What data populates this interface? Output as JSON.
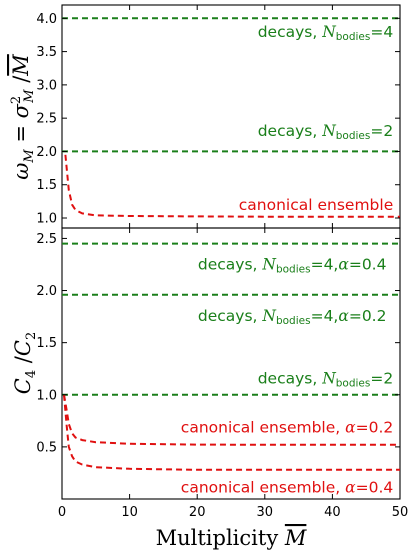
{
  "chart_data": [
    {
      "type": "line",
      "panel": "top",
      "ylabel": "ω_M = σ²_M / M̄",
      "xlim": [
        0,
        50
      ],
      "ylim": [
        0.85,
        4.2
      ],
      "yticks": [
        1.0,
        1.5,
        2.0,
        2.5,
        3.0,
        3.5,
        4.0
      ],
      "ytick_labels": [
        "1.0",
        "1.5",
        "2.0",
        "2.5",
        "3.0",
        "3.5",
        "4.0"
      ],
      "series": [
        {
          "color": "#1a7f1a",
          "style": "dashed",
          "x": [
            0,
            50
          ],
          "y": [
            4.0,
            4.0
          ]
        },
        {
          "color": "#1a7f1a",
          "style": "dashed",
          "x": [
            0,
            50
          ],
          "y": [
            2.0,
            2.0
          ]
        },
        {
          "color": "#e01010",
          "style": "dashed",
          "x": [
            0.5,
            1,
            1.5,
            2,
            3,
            5,
            10,
            20,
            30,
            40,
            50
          ],
          "y": [
            1.95,
            1.42,
            1.2,
            1.12,
            1.07,
            1.04,
            1.03,
            1.025,
            1.02,
            1.02,
            1.02
          ]
        }
      ],
      "annotations": [
        {
          "text": "decays, ",
          "var": "N",
          "sub": "bodies",
          "suffix": "=4",
          "color": "green",
          "x": 49,
          "y": 3.72
        },
        {
          "text": "decays, ",
          "var": "N",
          "sub": "bodies",
          "suffix": "=2",
          "color": "green",
          "x": 49,
          "y": 2.23
        },
        {
          "text": "canonical ensemble",
          "color": "red",
          "x": 49,
          "y": 1.12
        }
      ]
    },
    {
      "type": "line",
      "panel": "bottom",
      "xlabel": "Multiplicity M̄",
      "ylabel": "C₄ / C₂",
      "xlim": [
        0,
        50
      ],
      "ylim": [
        0,
        2.6
      ],
      "xticks": [
        0,
        10,
        20,
        30,
        40,
        50
      ],
      "xtick_labels": [
        "0",
        "10",
        "20",
        "30",
        "40",
        "50"
      ],
      "yticks": [
        0.5,
        1.0,
        1.5,
        2.0,
        2.5
      ],
      "ytick_labels": [
        "0.5",
        "1.0",
        "1.5",
        "2.0",
        "2.5"
      ],
      "series": [
        {
          "color": "#1a7f1a",
          "style": "dashed",
          "x": [
            0,
            50
          ],
          "y": [
            2.45,
            2.45
          ]
        },
        {
          "color": "#1a7f1a",
          "style": "dashed",
          "x": [
            0,
            50
          ],
          "y": [
            1.96,
            1.96
          ]
        },
        {
          "color": "#1a7f1a",
          "style": "dashed",
          "x": [
            0,
            50
          ],
          "y": [
            1.0,
            1.0
          ]
        },
        {
          "color": "#e01010",
          "style": "dashed",
          "x": [
            0.3,
            0.7,
            1,
            1.5,
            2,
            3,
            5,
            10,
            20,
            30,
            40,
            50
          ],
          "y": [
            1.0,
            0.85,
            0.72,
            0.63,
            0.59,
            0.565,
            0.545,
            0.53,
            0.522,
            0.52,
            0.52,
            0.52
          ]
        },
        {
          "color": "#e01010",
          "style": "dashed",
          "x": [
            0.3,
            0.7,
            1,
            1.5,
            2,
            3,
            5,
            10,
            20,
            30,
            40,
            50
          ],
          "y": [
            1.0,
            0.7,
            0.5,
            0.41,
            0.36,
            0.33,
            0.305,
            0.29,
            0.28,
            0.28,
            0.28,
            0.28
          ]
        }
      ],
      "annotations": [
        {
          "text": "decays, ",
          "var": "N",
          "sub": "bodies",
          "suffix": "=4,",
          "var2": "α",
          "suffix2": "=0.4",
          "color": "green",
          "x": 48,
          "y": 2.2
        },
        {
          "text": "decays, ",
          "var": "N",
          "sub": "bodies",
          "suffix": "=4,",
          "var2": "α",
          "suffix2": "=0.2",
          "color": "green",
          "x": 48,
          "y": 1.71
        },
        {
          "text": "decays, ",
          "var": "N",
          "sub": "bodies",
          "suffix": "=2",
          "color": "green",
          "x": 49,
          "y": 1.11
        },
        {
          "text": "canonical ensemble, ",
          "var2": "α",
          "suffix2": "=0.2",
          "color": "red",
          "x": 49,
          "y": 0.64
        },
        {
          "text": "canonical ensemble, ",
          "var2": "α",
          "suffix2": "=0.4",
          "color": "red",
          "x": 49,
          "y": 0.06
        }
      ]
    }
  ]
}
